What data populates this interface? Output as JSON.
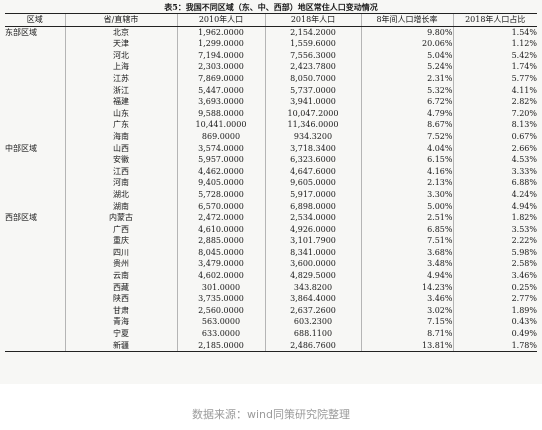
{
  "caption": "表5：我国不同区域（东、中、西部）地区常住人口变动情况",
  "headers": [
    "区域",
    "省/直辖市",
    "2010年人口",
    "2018年人口",
    "8年间人口增长率",
    "2018年人口占比"
  ],
  "rows": [
    [
      "东部区域",
      "北京",
      "1,962.0000",
      "2,154.2000",
      "9.80%",
      "1.54%"
    ],
    [
      "",
      "天津",
      "1,299.0000",
      "1,559.6000",
      "20.06%",
      "1.12%"
    ],
    [
      "",
      "河北",
      "7,194.0000",
      "7,556.3000",
      "5.04%",
      "5.42%"
    ],
    [
      "",
      "上海",
      "2,303.0000",
      "2,423.7800",
      "5.24%",
      "1.74%"
    ],
    [
      "",
      "江苏",
      "7,869.0000",
      "8,050.7000",
      "2.31%",
      "5.77%"
    ],
    [
      "",
      "浙江",
      "5,447.0000",
      "5,737.0000",
      "5.32%",
      "4.11%"
    ],
    [
      "",
      "福建",
      "3,693.0000",
      "3,941.0000",
      "6.72%",
      "2.82%"
    ],
    [
      "",
      "山东",
      "9,588.0000",
      "10,047.2000",
      "4.79%",
      "7.20%"
    ],
    [
      "",
      "广东",
      "10,441.0000",
      "11,346.0000",
      "8.67%",
      "8.13%"
    ],
    [
      "",
      "海南",
      "869.0000",
      "934.3200",
      "7.52%",
      "0.67%"
    ],
    [
      "中部区域",
      "山西",
      "3,574.0000",
      "3,718.3400",
      "4.04%",
      "2.66%"
    ],
    [
      "",
      "安徽",
      "5,957.0000",
      "6,323.6000",
      "6.15%",
      "4.53%"
    ],
    [
      "",
      "江西",
      "4,462.0000",
      "4,647.6000",
      "4.16%",
      "3.33%"
    ],
    [
      "",
      "河南",
      "9,405.0000",
      "9,605.0000",
      "2.13%",
      "6.88%"
    ],
    [
      "",
      "湖北",
      "5,728.0000",
      "5,917.0000",
      "3.30%",
      "4.24%"
    ],
    [
      "",
      "湖南",
      "6,570.0000",
      "6,898.0000",
      "5.00%",
      "4.94%"
    ],
    [
      "西部区域",
      "内蒙古",
      "2,472.0000",
      "2,534.0000",
      "2.51%",
      "1.82%"
    ],
    [
      "",
      "广西",
      "4,610.0000",
      "4,926.0000",
      "6.85%",
      "3.53%"
    ],
    [
      "",
      "重庆",
      "2,885.0000",
      "3,101.7900",
      "7.51%",
      "2.22%"
    ],
    [
      "",
      "四川",
      "8,045.0000",
      "8,341.0000",
      "3.68%",
      "5.98%"
    ],
    [
      "",
      "贵州",
      "3,479.0000",
      "3,600.0000",
      "3.48%",
      "2.58%"
    ],
    [
      "",
      "云南",
      "4,602.0000",
      "4,829.5000",
      "4.94%",
      "3.46%"
    ],
    [
      "",
      "西藏",
      "301.0000",
      "343.8200",
      "14.23%",
      "0.25%"
    ],
    [
      "",
      "陕西",
      "3,735.0000",
      "3,864.4000",
      "3.46%",
      "2.77%"
    ],
    [
      "",
      "甘肃",
      "2,560.0000",
      "2,637.2600",
      "3.02%",
      "1.89%"
    ],
    [
      "",
      "青海",
      "563.0000",
      "603.2300",
      "7.15%",
      "0.43%"
    ],
    [
      "",
      "宁夏",
      "633.0000",
      "688.1100",
      "8.71%",
      "0.49%"
    ],
    [
      "",
      "新疆",
      "2,185.0000",
      "2,486.7600",
      "13.81%",
      "1.78%"
    ]
  ],
  "source": "数据来源：wind同策研究院整理"
}
